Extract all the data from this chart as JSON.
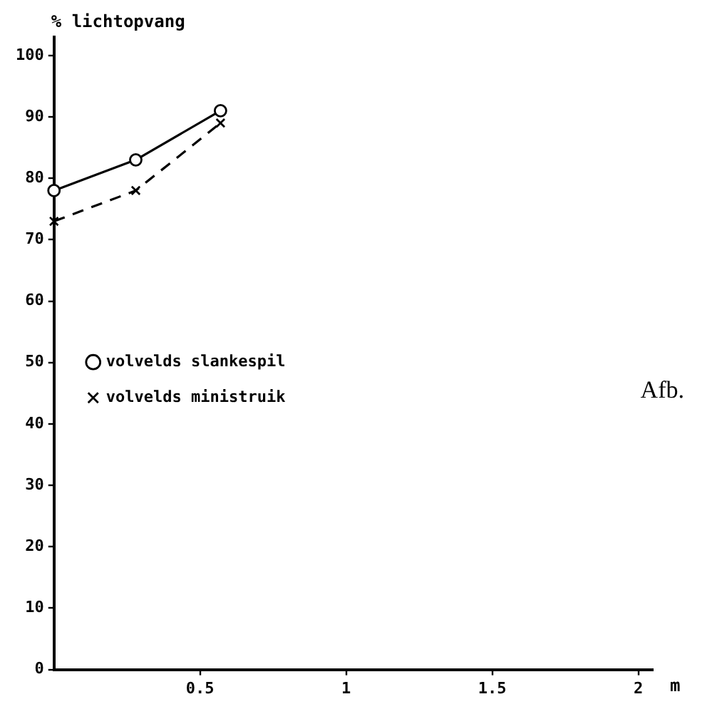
{
  "chart_data": {
    "type": "line",
    "ylabel": "% lichtopvang",
    "xlabel": "m",
    "x": [
      0,
      0.28,
      0.57
    ],
    "series": [
      {
        "name": "volvelds slankespil",
        "color": "#000000",
        "values": [
          78,
          83,
          91
        ],
        "marker": "circle",
        "line_style": "solid"
      },
      {
        "name": "volvelds ministruik",
        "color": "#000000",
        "values": [
          73,
          78,
          89
        ],
        "marker": "cross",
        "line_style": "dashed"
      }
    ],
    "xlim": [
      0,
      2.05
    ],
    "xticks": [
      0.5,
      1,
      1.5,
      2
    ],
    "ylim": [
      0,
      103
    ],
    "yticks": [
      0,
      10,
      20,
      30,
      40,
      50,
      60,
      70,
      80,
      90,
      100
    ],
    "grid": false,
    "legend": "left",
    "annotations": [
      "Afb."
    ]
  }
}
